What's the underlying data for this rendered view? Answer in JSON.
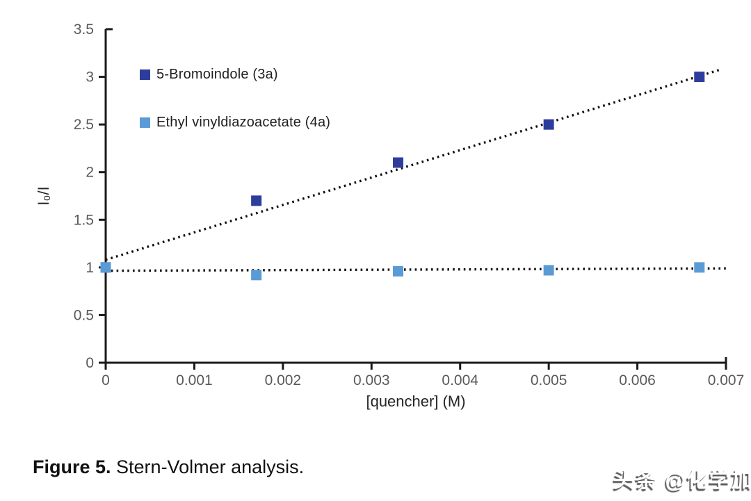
{
  "chart_data": {
    "type": "scatter",
    "title": "",
    "xlabel": "[quencher] (M)",
    "ylabel": "I₀/I",
    "xlim": [
      0,
      0.007
    ],
    "ylim": [
      0,
      3.5
    ],
    "grid": false,
    "legend_position": "inside-upper-left",
    "axis_color": "#1a1a1a",
    "tick_label_color": "#595959",
    "axis_title_color": "#262626",
    "x_ticks": {
      "values": [
        0,
        0.001,
        0.002,
        0.003,
        0.004,
        0.005,
        0.006,
        0.007
      ],
      "labels": [
        "0",
        "0.001",
        "0.002",
        "0.003",
        "0.004",
        "0.005",
        "0.006",
        "0.007"
      ]
    },
    "y_ticks": {
      "values": [
        0,
        0.5,
        1,
        1.5,
        2,
        2.5,
        3,
        3.5
      ],
      "labels": [
        "0",
        "0.5",
        "1",
        "1.5",
        "2",
        "2.5",
        "3",
        "3.5"
      ]
    },
    "series": [
      {
        "name": "5-Bromoindole (3a)",
        "color": "#2E3D9C",
        "marker": "square",
        "x": [
          0,
          0.0017,
          0.0033,
          0.005,
          0.0067
        ],
        "y": [
          1.0,
          1.7,
          2.1,
          2.5,
          3.0
        ],
        "trendline": {
          "style": "dotted",
          "color": "#111111",
          "x1": 0,
          "y1": 1.08,
          "x2": 0.00695,
          "y2": 3.08
        }
      },
      {
        "name": "Ethyl vinyldiazoacetate (4a)",
        "color": "#5B9BD5",
        "marker": "square",
        "x": [
          0,
          0.0017,
          0.0033,
          0.005,
          0.0067
        ],
        "y": [
          1.0,
          0.92,
          0.96,
          0.97,
          1.0
        ],
        "trendline": {
          "style": "dotted",
          "color": "#111111",
          "x1": 0,
          "y1": 0.965,
          "x2": 0.007,
          "y2": 0.99
        }
      }
    ]
  },
  "caption": {
    "label": "Figure 5.",
    "text": " Stern-Volmer analysis."
  },
  "watermark": {
    "text": "头条 @化学加"
  }
}
